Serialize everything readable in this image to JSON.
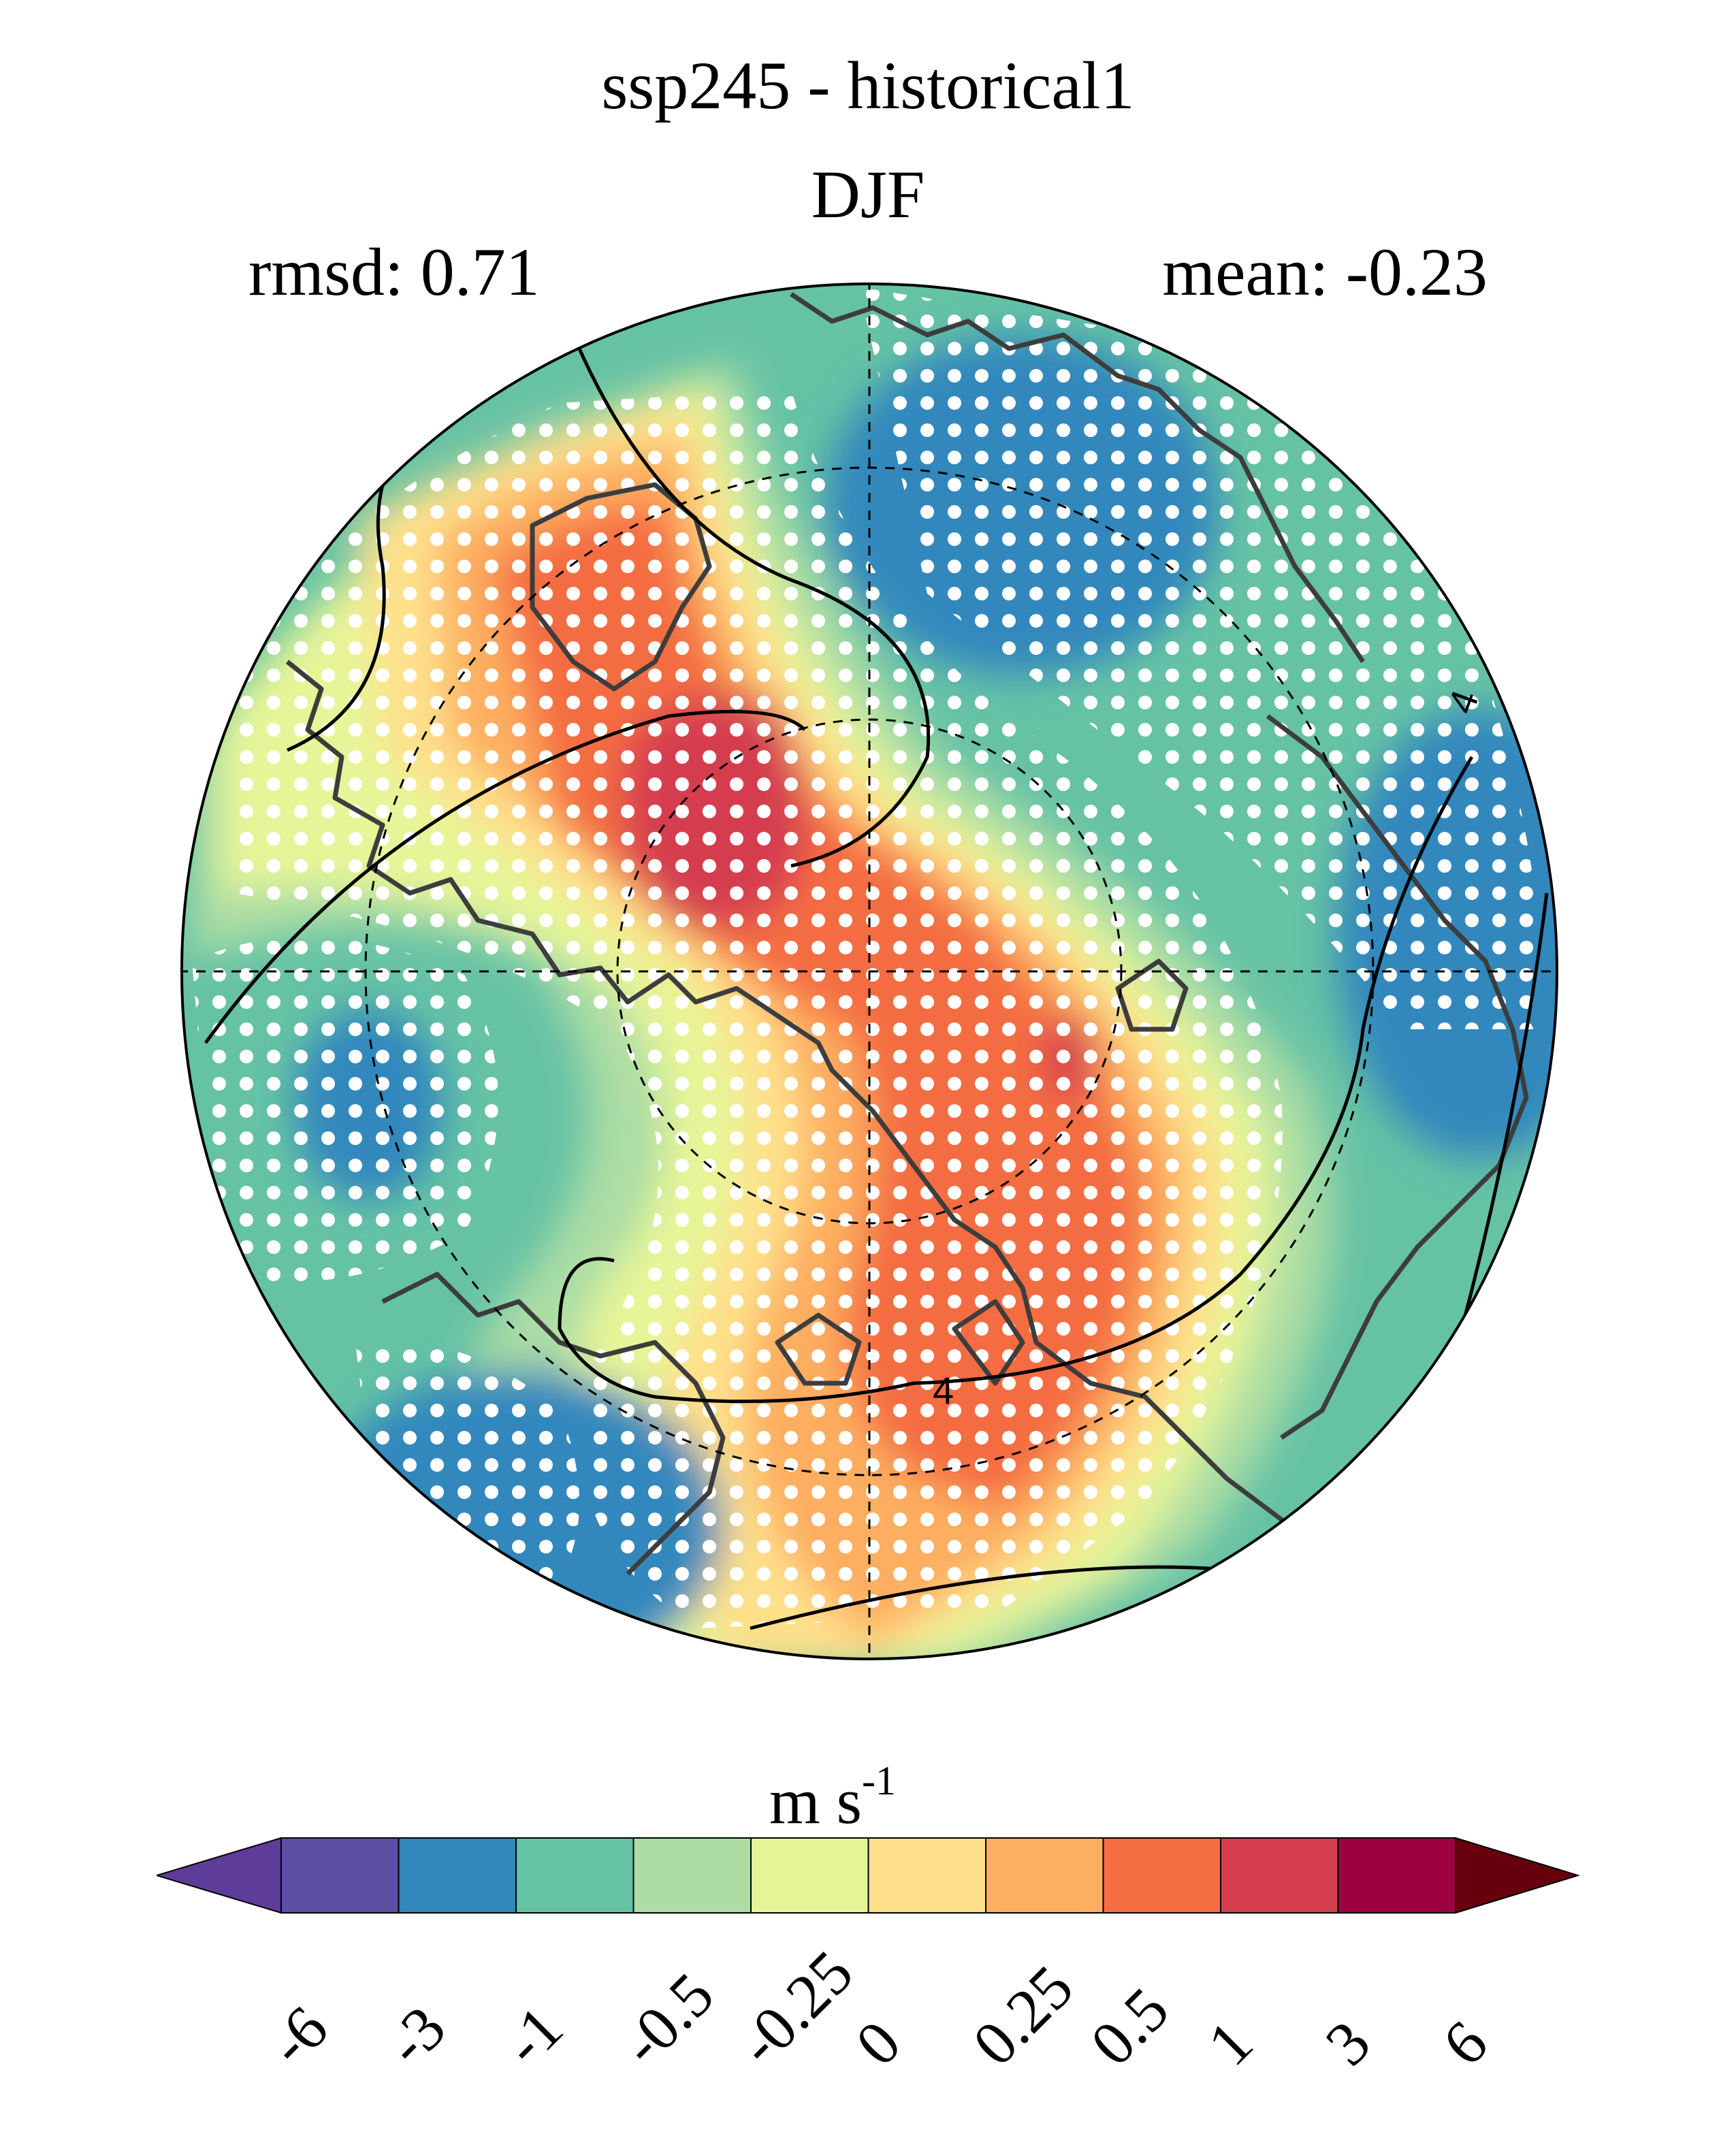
{
  "figure": {
    "title": "ssp245 - historical1",
    "season": "DJF",
    "rmsd_label": "rmsd: 0.71",
    "mean_label": "mean: -0.23",
    "contour_label": "4",
    "projection": "north polar stereographic",
    "stippling": "white dots mark significant regions"
  },
  "colorbar": {
    "units_base": "m s",
    "units_exp": "-1",
    "extend": "both",
    "levels": [
      "-6",
      "-3",
      "-1",
      "-0.5",
      "-0.25",
      "0",
      "0.25",
      "0.5",
      "1",
      "3",
      "6"
    ],
    "colors": [
      "#5e3c99",
      "#3288bd",
      "#66c2a5",
      "#abdda4",
      "#e6f598",
      "#fee08b",
      "#fdae61",
      "#f46d43",
      "#d53e4f",
      "#9e0142",
      "#67000d",
      "#5e4fa2"
    ],
    "under_color": "#5e3c99",
    "over_color": "#67000d"
  }
}
